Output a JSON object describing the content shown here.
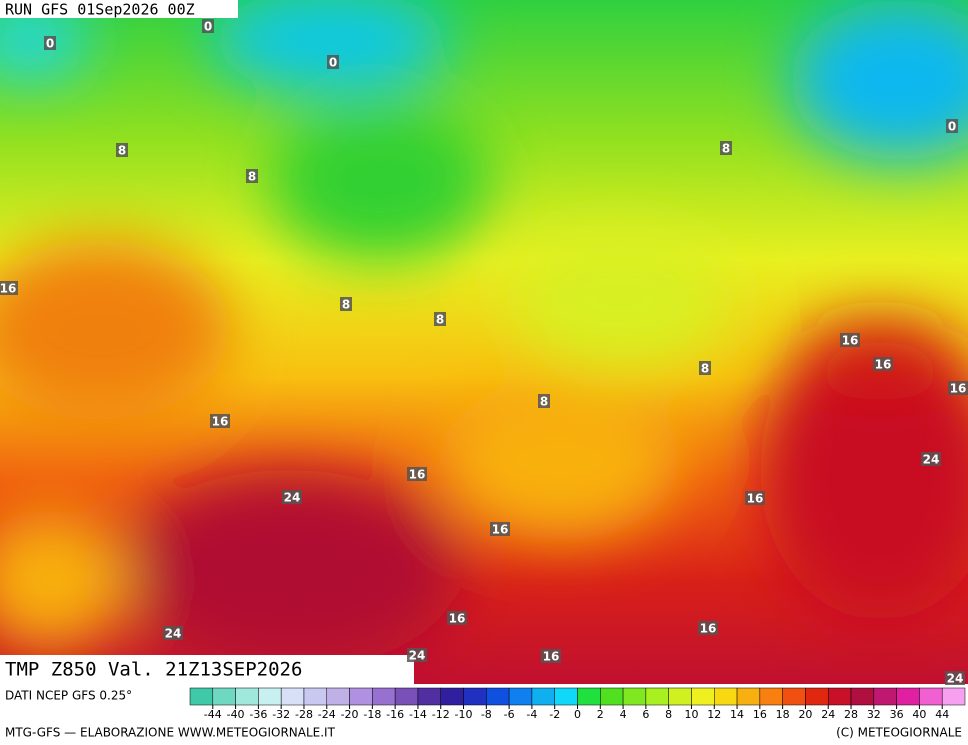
{
  "header": {
    "run": "RUN GFS 01Sep2026 00Z"
  },
  "map": {
    "contour_labels": [
      0,
      0,
      0,
      0,
      8,
      8,
      8,
      8,
      8,
      8,
      8,
      16,
      16,
      16,
      16,
      16,
      16,
      16,
      16,
      16,
      16,
      16,
      24,
      24,
      24,
      24,
      24
    ]
  },
  "footer": {
    "title": "TMP Z850 Val. 21Z13SEP2026",
    "source": "DATI NCEP GFS 0.25°",
    "credit": "MTG-GFS — ELABORAZIONE WWW.METEOGIORNALE.IT",
    "copyright": "(C) METEOGIORNALE"
  },
  "legend": {
    "labels": [
      -44,
      -40,
      -36,
      -32,
      -28,
      -24,
      -20,
      -18,
      -16,
      -14,
      -12,
      -10,
      -8,
      -6,
      -4,
      -2,
      0,
      2,
      4,
      6,
      8,
      10,
      12,
      14,
      16,
      18,
      20,
      24,
      28,
      32,
      36,
      40,
      44
    ],
    "colors": [
      "#3fc9a8",
      "#6fd8c0",
      "#a0e8dc",
      "#c8f0f0",
      "#d8e0f8",
      "#c8c8f0",
      "#c0b0e8",
      "#b090e0",
      "#9870d0",
      "#7850b8",
      "#5030a0",
      "#3020a0",
      "#2030c0",
      "#1050e0",
      "#1080f0",
      "#10b0f0",
      "#10d8f8",
      "#20e040",
      "#50e020",
      "#80e820",
      "#a8f020",
      "#d0f020",
      "#f0f020",
      "#f8d810",
      "#f8b010",
      "#f88010",
      "#f05010",
      "#e02810",
      "#c81028",
      "#b01040",
      "#c01870",
      "#e020a0",
      "#f060d0",
      "#f8a0f0"
    ]
  }
}
